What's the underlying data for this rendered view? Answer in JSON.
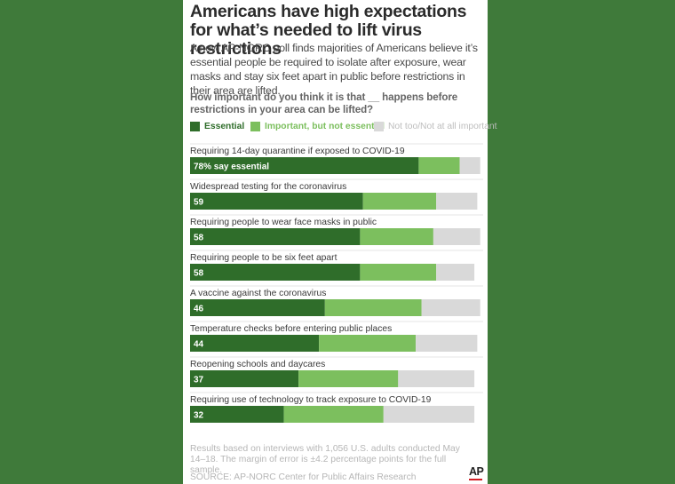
{
  "colors": {
    "background": "#3f7a3a",
    "essential": "#2f6d2a",
    "important": "#7cbf5e",
    "not_important": "#d9d9d9"
  },
  "header": {
    "title": "Americans have high expectations for what’s needed to lift virus restrictions",
    "subtitle": "A new AP-NORC poll finds majorities of Americans believe it’s essential people be required to isolate after exposure, wear masks and stay six feet apart in public before restrictions in their area are lifted.",
    "question": "How important do you think it is that __ happens before restrictions in your area can be lifted?"
  },
  "legend": [
    {
      "label": "Essential",
      "color": "#2f6d2a"
    },
    {
      "label": "Important, but not essential",
      "color": "#7cbf5e"
    },
    {
      "label": "Not too/Not at all important",
      "color": "#d9d9d9"
    }
  ],
  "chart_data": {
    "type": "bar",
    "orientation": "horizontal",
    "stacked": true,
    "xlim": [
      0,
      100
    ],
    "categories": [
      "Requiring 14-day quarantine if exposed to COVID-19",
      "Widespread testing for the coronavirus",
      "Requiring people to wear face masks in public",
      "Requiring people to be six feet apart",
      "A vaccine against the coronavirus",
      "Temperature checks before entering public places",
      "Reopening schools and daycares",
      "Requiring use of technology to track exposure to COVID-19"
    ],
    "value_labels": [
      "78% say essential",
      "59",
      "58",
      "58",
      "46",
      "44",
      "37",
      "32"
    ],
    "series": [
      {
        "name": "Essential",
        "values": [
          78,
          59,
          58,
          58,
          46,
          44,
          37,
          32
        ]
      },
      {
        "name": "Important, but not essential",
        "values": [
          14,
          25,
          25,
          26,
          33,
          33,
          34,
          34
        ]
      },
      {
        "name": "Not too/Not at all important",
        "values": [
          7,
          14,
          16,
          13,
          20,
          21,
          26,
          31
        ]
      }
    ]
  },
  "footer": {
    "note": "Results based on interviews with 1,056 U.S. adults conducted May 14–18. The margin of error is ±4.2 percentage points for the full sample.",
    "source": "SOURCE: AP-NORC Center for Public Affairs Research",
    "logo_text": "AP"
  }
}
